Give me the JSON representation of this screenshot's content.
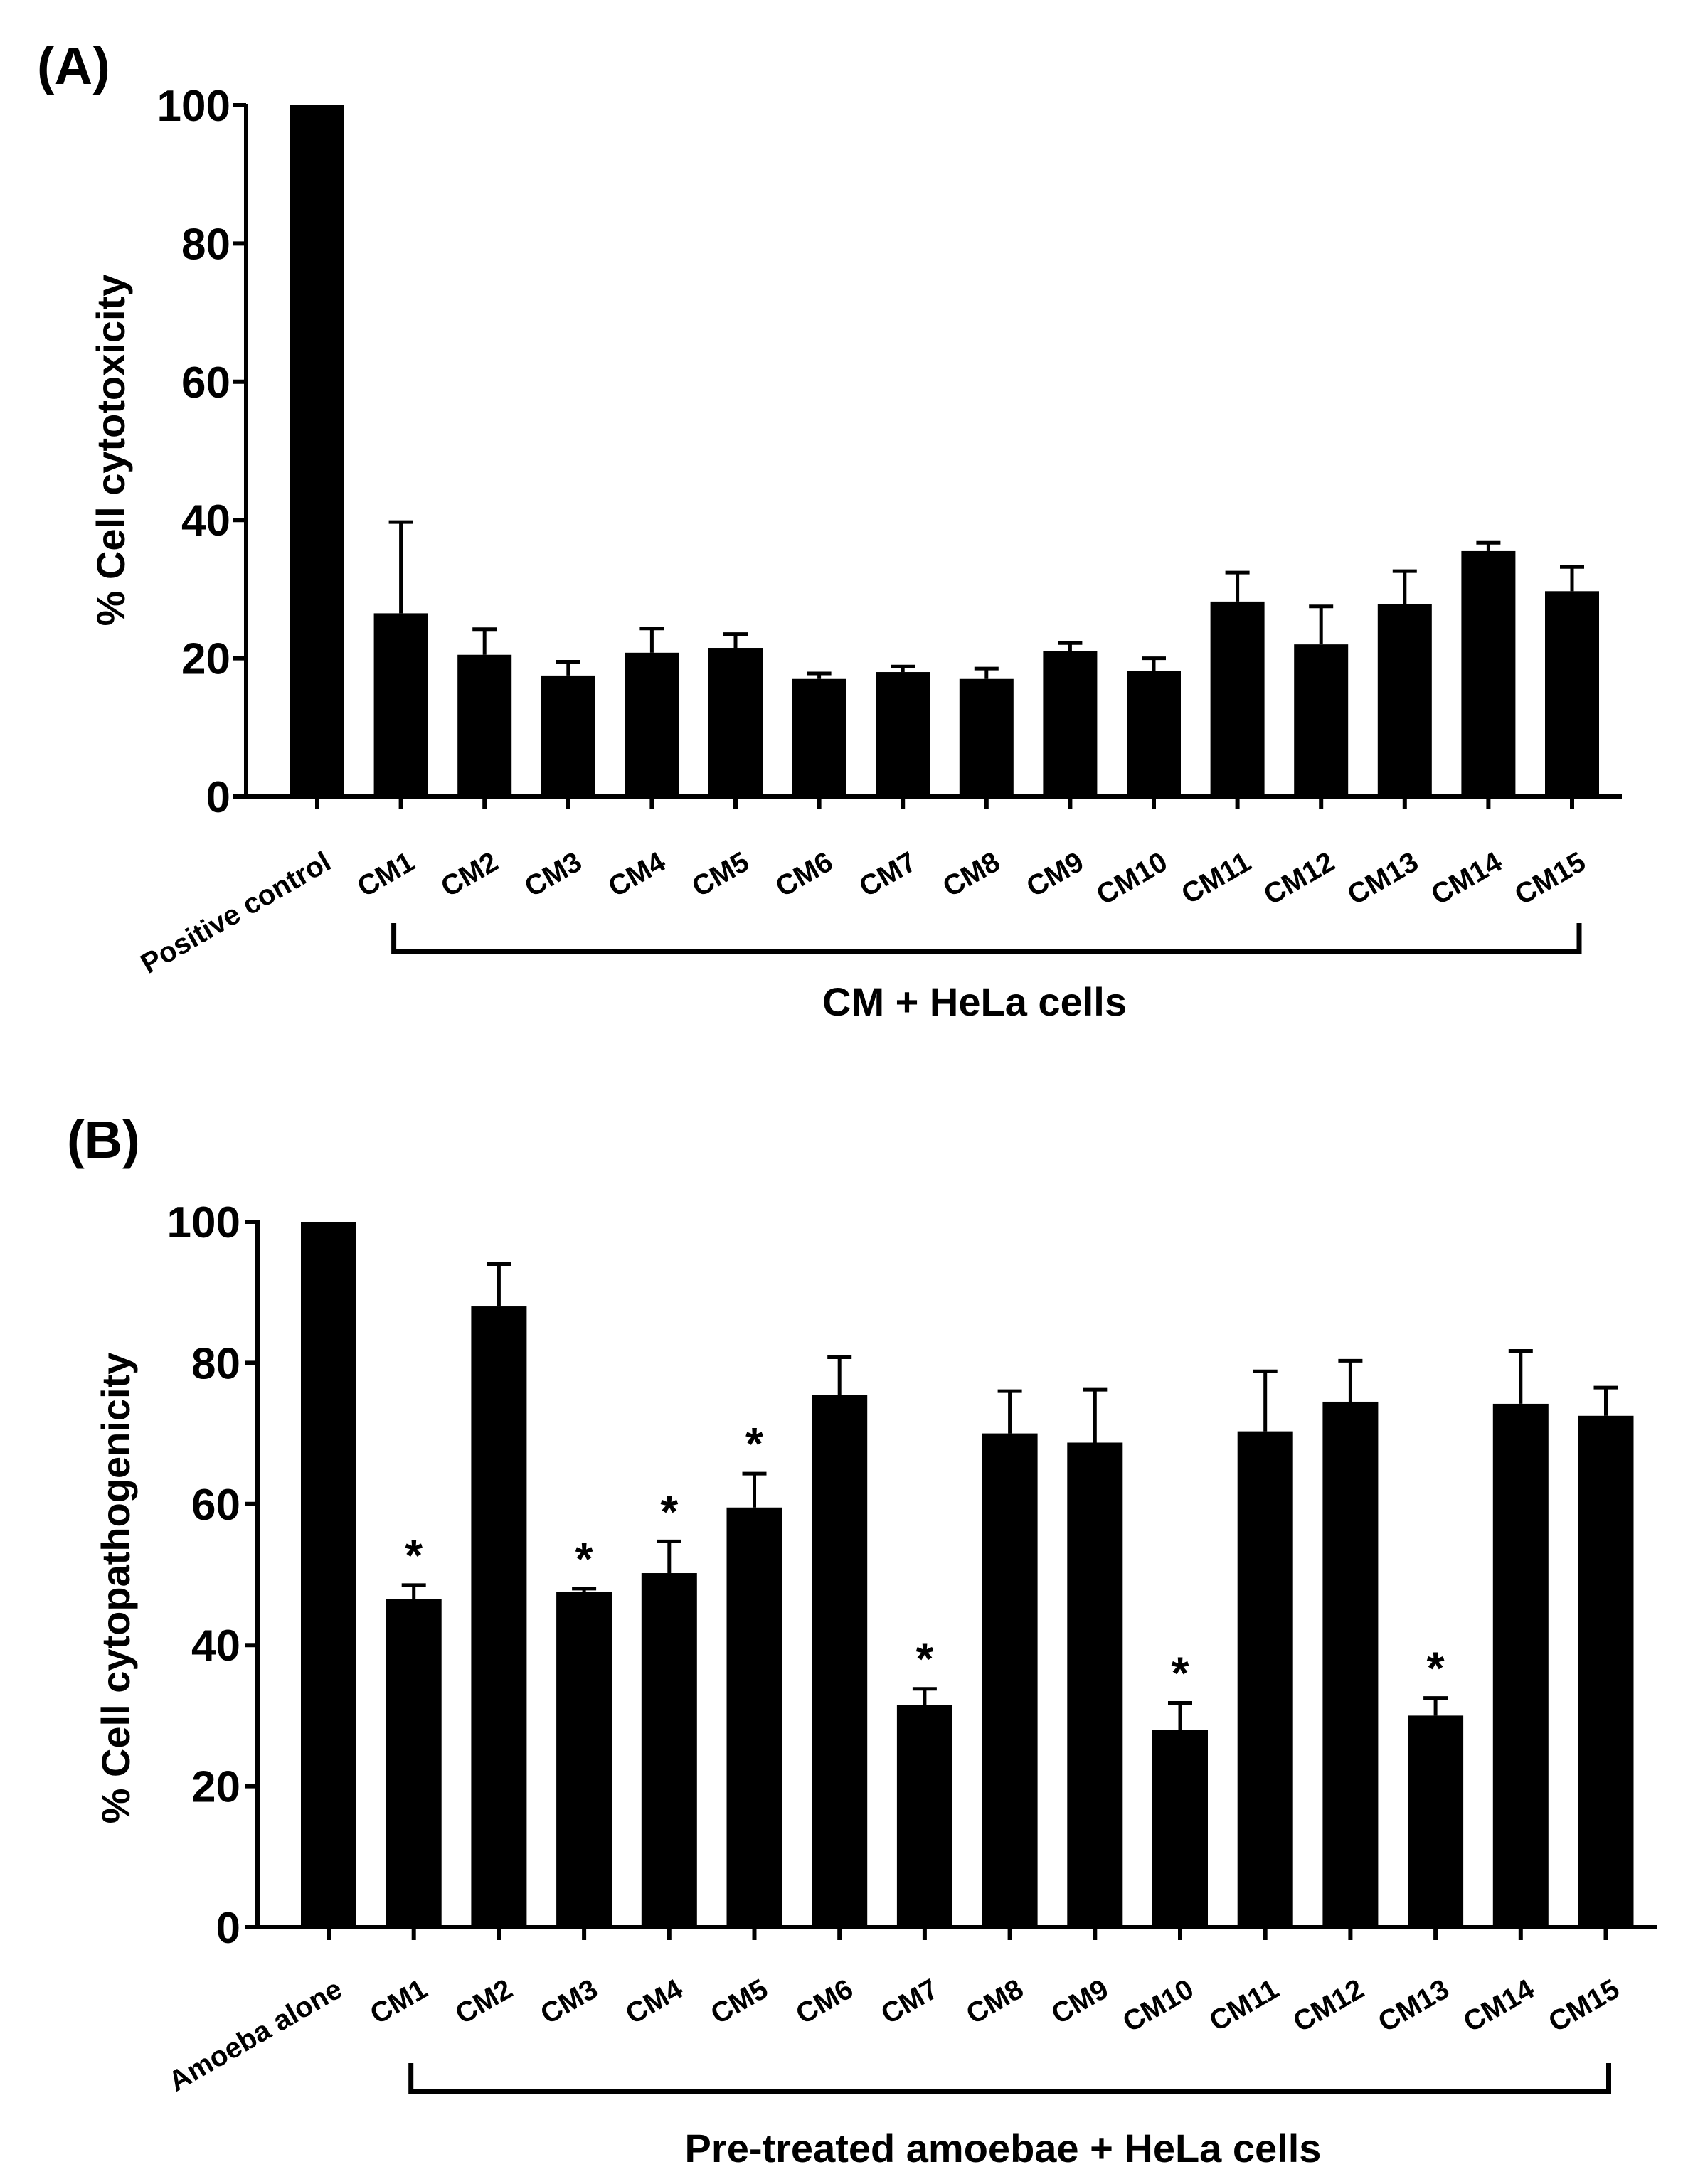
{
  "colors": {
    "bar": "#000000",
    "axis": "#000000",
    "background": "#ffffff"
  },
  "chart_data": [
    {
      "type": "bar",
      "panel_label": "(A)",
      "title": "",
      "xlabel": "",
      "ylabel": "% Cell cytotoxicity",
      "ylim": [
        0,
        100
      ],
      "yticks": [
        "0",
        "20",
        "40",
        "60",
        "80",
        "100"
      ],
      "categories": [
        "Positive control",
        "CM1",
        "CM2",
        "CM3",
        "CM4",
        "CM5",
        "CM6",
        "CM7",
        "CM8",
        "CM9",
        "CM10",
        "CM11",
        "CM12",
        "CM13",
        "CM14",
        "CM15"
      ],
      "values": [
        100,
        26.5,
        20.5,
        17.5,
        20.8,
        21.5,
        17,
        18,
        17,
        21,
        18.2,
        28.2,
        22,
        27.8,
        35.5,
        29.7
      ],
      "error_upper": [
        0,
        13.2,
        3.7,
        2,
        3.5,
        2,
        0.8,
        0.8,
        1.5,
        1.2,
        1.8,
        4.2,
        5.5,
        4.8,
        1.2,
        3.5
      ],
      "significant": [
        false,
        false,
        false,
        false,
        false,
        false,
        false,
        false,
        false,
        false,
        false,
        false,
        false,
        false,
        false,
        false
      ],
      "significance_marker": "*",
      "group_bracket": {
        "label": "CM + HeLa cells",
        "from": "CM1",
        "to": "CM15"
      }
    },
    {
      "type": "bar",
      "panel_label": "(B)",
      "title": "",
      "xlabel": "",
      "ylabel": "% Cell cytopathogenicity",
      "ylim": [
        0,
        100
      ],
      "yticks": [
        "0",
        "20",
        "40",
        "60",
        "80",
        "100"
      ],
      "categories": [
        "Amoeba alone",
        "CM1",
        "CM2",
        "CM3",
        "CM4",
        "CM5",
        "CM6",
        "CM7",
        "CM8",
        "CM9",
        "CM10",
        "CM11",
        "CM12",
        "CM13",
        "CM14",
        "CM15"
      ],
      "values": [
        100,
        46.5,
        88,
        47.5,
        50.2,
        59.5,
        75.5,
        31.5,
        70,
        68.7,
        28,
        70.3,
        74.5,
        30,
        74.2,
        72.5
      ],
      "error_upper": [
        0,
        2,
        6,
        0.5,
        4.5,
        4.8,
        5.3,
        2.3,
        6,
        7.5,
        3.8,
        8.5,
        5.8,
        2.5,
        7.5,
        4
      ],
      "significant": [
        false,
        true,
        false,
        true,
        true,
        true,
        false,
        true,
        false,
        false,
        true,
        false,
        false,
        true,
        false,
        false
      ],
      "significance_marker": "*",
      "group_bracket": {
        "label": "Pre-treated amoebae + HeLa cells",
        "from": "CM1",
        "to": "CM15"
      }
    }
  ]
}
